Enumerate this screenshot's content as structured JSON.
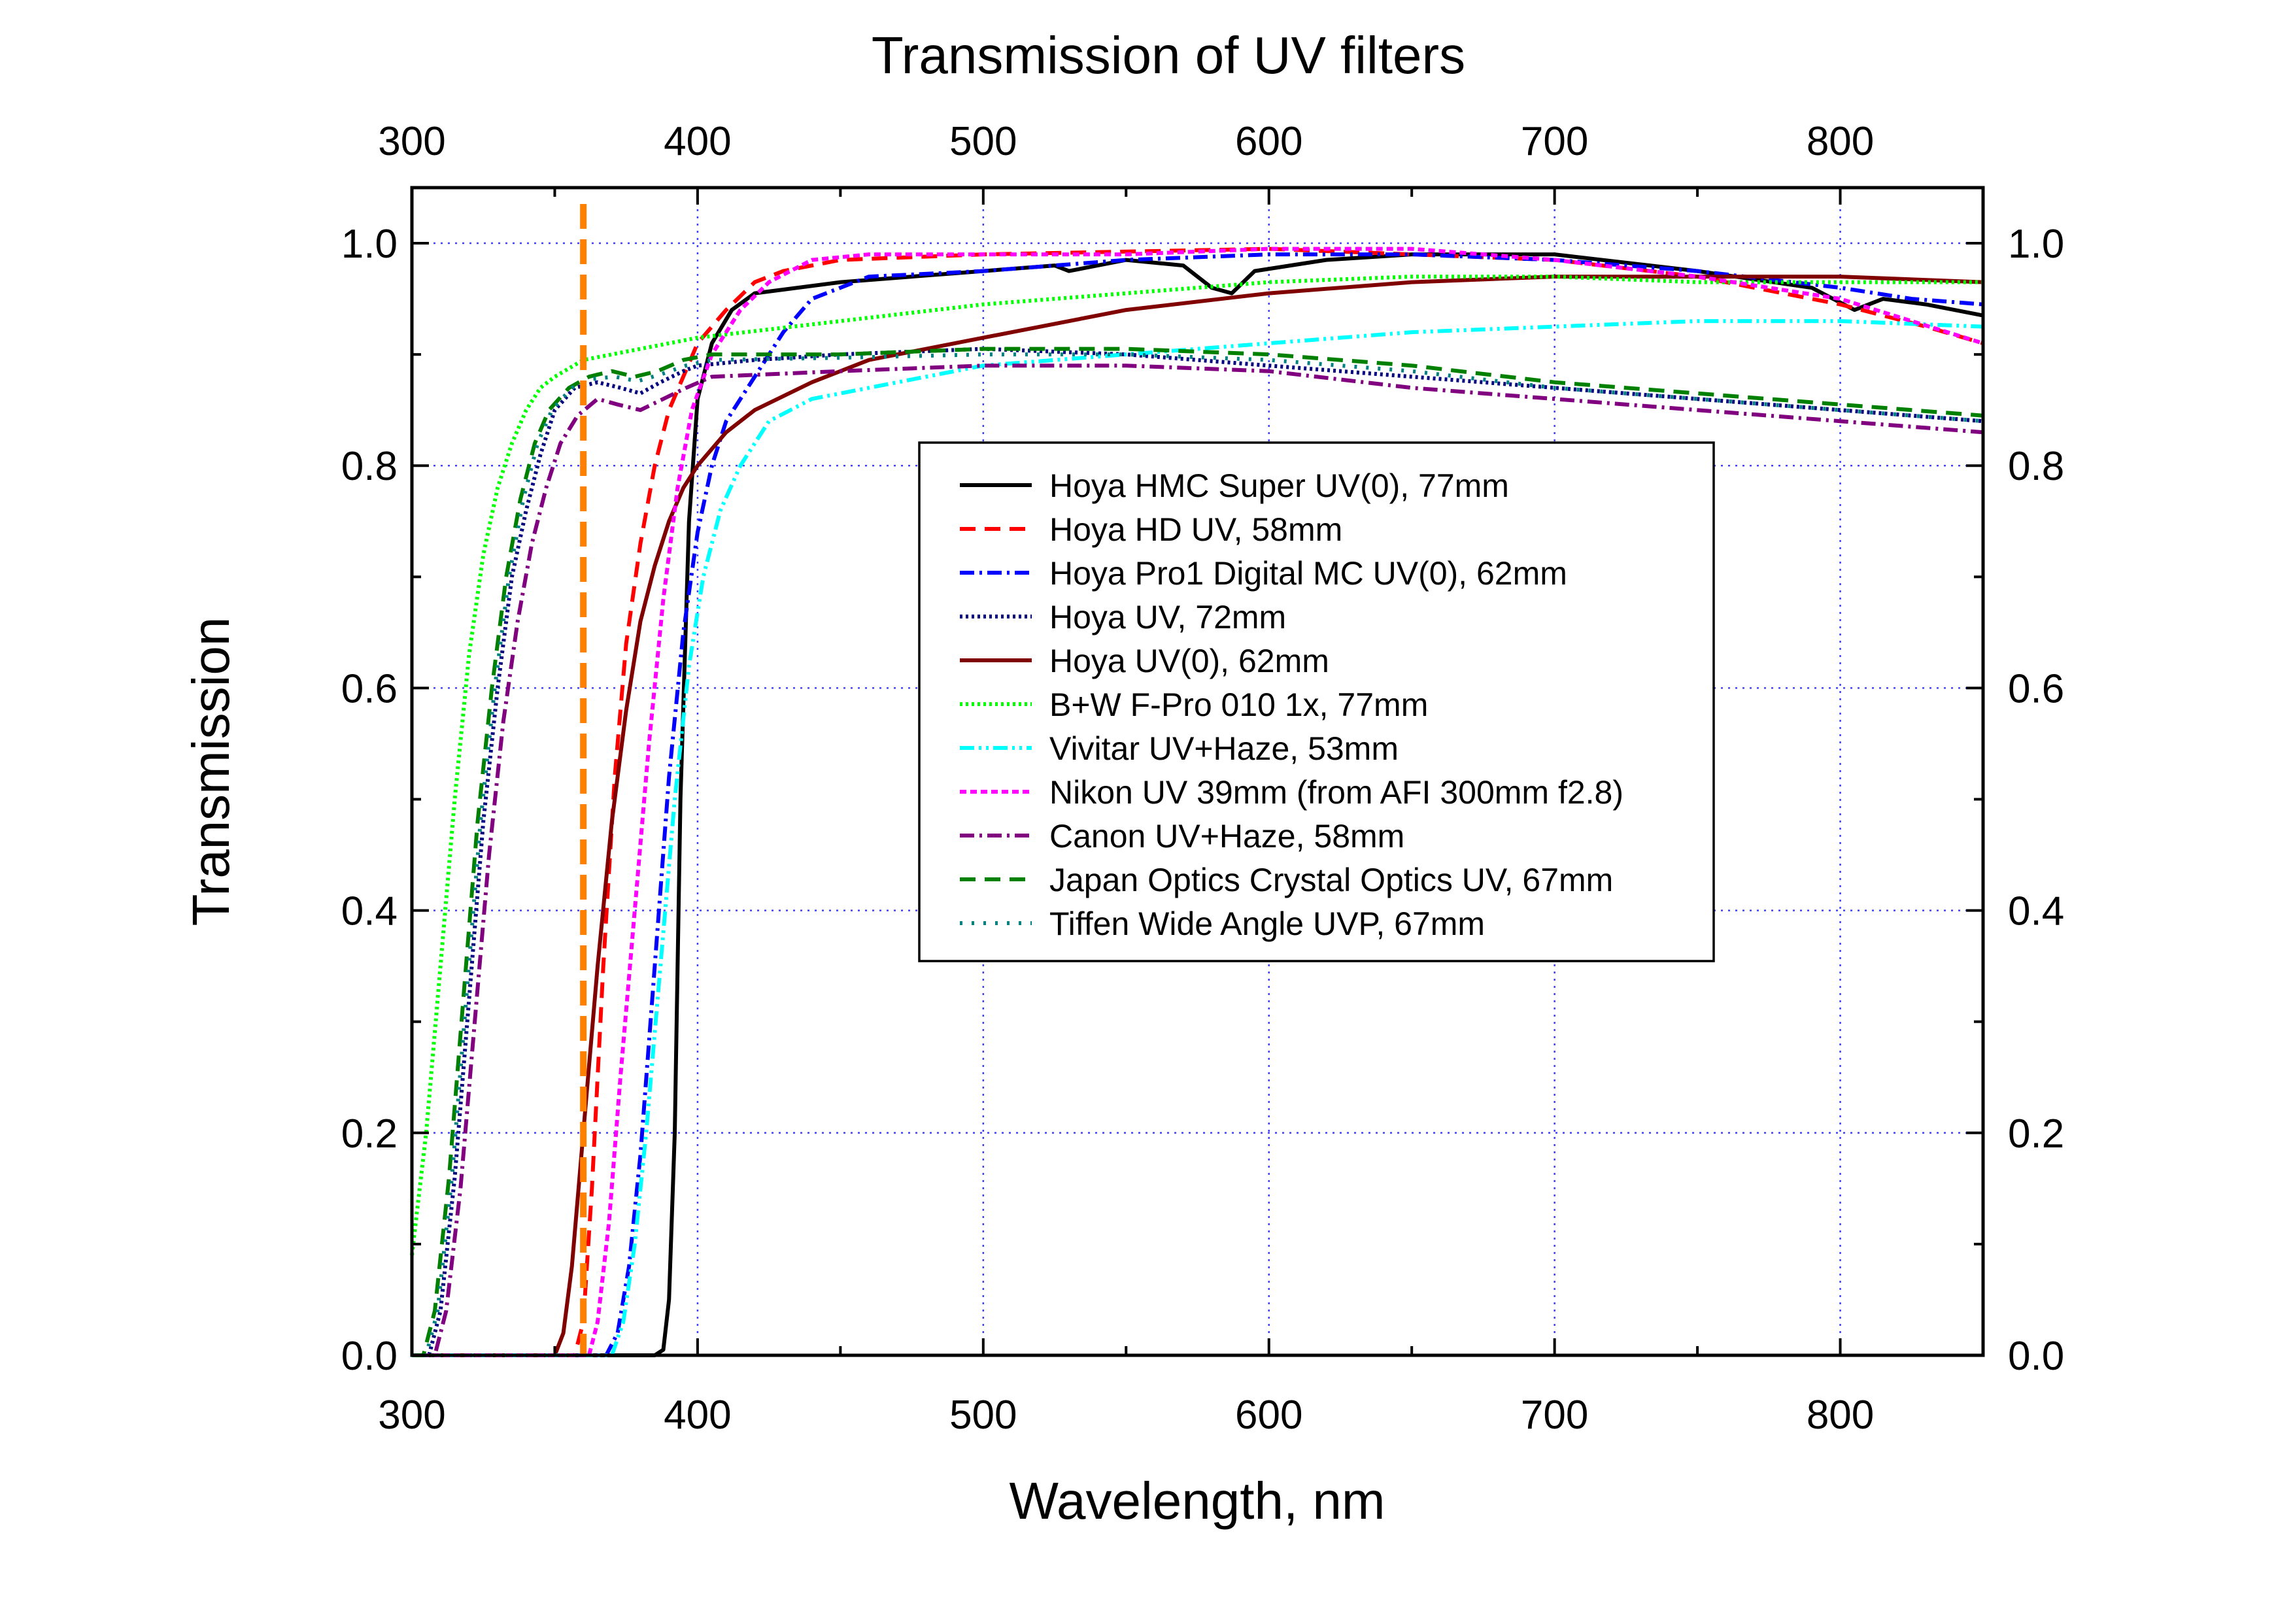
{
  "chart_data": {
    "type": "line",
    "title": "Transmission of UV filters",
    "xlabel": "Wavelength, nm",
    "ylabel": "Transmission",
    "xlim": [
      300,
      850
    ],
    "ylim": [
      0.0,
      1.05
    ],
    "x_ticks": [
      300,
      400,
      500,
      600,
      700,
      800
    ],
    "y_ticks": [
      "0.0",
      "0.2",
      "0.4",
      "0.6",
      "0.8",
      "1.0"
    ],
    "top_x_ticks": [
      300,
      400,
      500,
      600,
      700,
      800
    ],
    "right_y_ticks": [
      "0.0",
      "0.2",
      "0.4",
      "0.6",
      "0.8",
      "1.0"
    ],
    "grid": true,
    "legend_position": "center-right",
    "marker_line": {
      "x": 360,
      "color": "#ff7f00",
      "style": "dashed"
    },
    "series": [
      {
        "name": "Hoya HMC Super UV(0), 77mm",
        "color": "#000000",
        "dash": "solid",
        "points": [
          [
            300,
            0
          ],
          [
            385,
            0
          ],
          [
            388,
            0.005
          ],
          [
            390,
            0.05
          ],
          [
            392,
            0.2
          ],
          [
            394,
            0.5
          ],
          [
            397,
            0.75
          ],
          [
            400,
            0.86
          ],
          [
            405,
            0.91
          ],
          [
            412,
            0.94
          ],
          [
            420,
            0.955
          ],
          [
            450,
            0.965
          ],
          [
            500,
            0.975
          ],
          [
            525,
            0.98
          ],
          [
            530,
            0.975
          ],
          [
            550,
            0.985
          ],
          [
            570,
            0.98
          ],
          [
            580,
            0.96
          ],
          [
            587,
            0.955
          ],
          [
            595,
            0.975
          ],
          [
            620,
            0.985
          ],
          [
            650,
            0.99
          ],
          [
            700,
            0.99
          ],
          [
            750,
            0.975
          ],
          [
            790,
            0.96
          ],
          [
            805,
            0.94
          ],
          [
            815,
            0.95
          ],
          [
            830,
            0.945
          ],
          [
            850,
            0.935
          ]
        ]
      },
      {
        "name": "Hoya HD UV, 58mm",
        "color": "#ff0000",
        "dash": "long-dash",
        "points": [
          [
            300,
            0
          ],
          [
            357,
            0
          ],
          [
            360,
            0.03
          ],
          [
            363,
            0.15
          ],
          [
            367,
            0.35
          ],
          [
            371,
            0.52
          ],
          [
            375,
            0.64
          ],
          [
            380,
            0.73
          ],
          [
            385,
            0.8
          ],
          [
            390,
            0.85
          ],
          [
            400,
            0.91
          ],
          [
            410,
            0.94
          ],
          [
            420,
            0.965
          ],
          [
            430,
            0.975
          ],
          [
            450,
            0.985
          ],
          [
            500,
            0.99
          ],
          [
            600,
            0.995
          ],
          [
            650,
            0.99
          ],
          [
            700,
            0.985
          ],
          [
            750,
            0.97
          ],
          [
            800,
            0.945
          ],
          [
            830,
            0.925
          ],
          [
            850,
            0.91
          ]
        ]
      },
      {
        "name": "Hoya Pro1 Digital MC UV(0), 62mm",
        "color": "#0000ff",
        "dash": "dash-dot",
        "points": [
          [
            300,
            0
          ],
          [
            368,
            0
          ],
          [
            372,
            0.02
          ],
          [
            376,
            0.08
          ],
          [
            380,
            0.18
          ],
          [
            385,
            0.35
          ],
          [
            390,
            0.52
          ],
          [
            395,
            0.65
          ],
          [
            400,
            0.74
          ],
          [
            405,
            0.8
          ],
          [
            410,
            0.84
          ],
          [
            420,
            0.88
          ],
          [
            430,
            0.92
          ],
          [
            440,
            0.95
          ],
          [
            460,
            0.97
          ],
          [
            500,
            0.975
          ],
          [
            550,
            0.985
          ],
          [
            600,
            0.99
          ],
          [
            650,
            0.99
          ],
          [
            700,
            0.985
          ],
          [
            750,
            0.975
          ],
          [
            800,
            0.96
          ],
          [
            825,
            0.95
          ],
          [
            850,
            0.945
          ]
        ]
      },
      {
        "name": "Hoya UV, 72mm",
        "color": "#000080",
        "dash": "dotted",
        "points": [
          [
            300,
            0
          ],
          [
            306,
            0
          ],
          [
            310,
            0.04
          ],
          [
            315,
            0.16
          ],
          [
            320,
            0.32
          ],
          [
            325,
            0.48
          ],
          [
            330,
            0.6
          ],
          [
            335,
            0.7
          ],
          [
            340,
            0.76
          ],
          [
            345,
            0.81
          ],
          [
            350,
            0.85
          ],
          [
            357,
            0.87
          ],
          [
            365,
            0.875
          ],
          [
            373,
            0.87
          ],
          [
            380,
            0.865
          ],
          [
            387,
            0.875
          ],
          [
            395,
            0.885
          ],
          [
            400,
            0.89
          ],
          [
            420,
            0.895
          ],
          [
            450,
            0.9
          ],
          [
            500,
            0.905
          ],
          [
            550,
            0.9
          ],
          [
            600,
            0.89
          ],
          [
            650,
            0.88
          ],
          [
            700,
            0.87
          ],
          [
            750,
            0.86
          ],
          [
            800,
            0.85
          ],
          [
            850,
            0.84
          ]
        ]
      },
      {
        "name": "Hoya UV(0), 62mm",
        "color": "#800000",
        "dash": "solid",
        "points": [
          [
            300,
            0
          ],
          [
            350,
            0
          ],
          [
            353,
            0.02
          ],
          [
            356,
            0.08
          ],
          [
            360,
            0.2
          ],
          [
            365,
            0.35
          ],
          [
            370,
            0.48
          ],
          [
            375,
            0.58
          ],
          [
            380,
            0.66
          ],
          [
            385,
            0.71
          ],
          [
            390,
            0.75
          ],
          [
            395,
            0.78
          ],
          [
            400,
            0.8
          ],
          [
            410,
            0.83
          ],
          [
            420,
            0.85
          ],
          [
            440,
            0.875
          ],
          [
            460,
            0.895
          ],
          [
            500,
            0.915
          ],
          [
            550,
            0.94
          ],
          [
            600,
            0.955
          ],
          [
            650,
            0.965
          ],
          [
            700,
            0.97
          ],
          [
            750,
            0.97
          ],
          [
            800,
            0.97
          ],
          [
            850,
            0.965
          ]
        ]
      },
      {
        "name": "B+W F-Pro 010 1x, 77mm",
        "color": "#00ff00",
        "dash": "dotted",
        "points": [
          [
            300,
            0.09
          ],
          [
            305,
            0.2
          ],
          [
            310,
            0.35
          ],
          [
            315,
            0.5
          ],
          [
            320,
            0.63
          ],
          [
            325,
            0.72
          ],
          [
            330,
            0.78
          ],
          [
            335,
            0.82
          ],
          [
            340,
            0.85
          ],
          [
            345,
            0.87
          ],
          [
            350,
            0.88
          ],
          [
            360,
            0.895
          ],
          [
            380,
            0.905
          ],
          [
            400,
            0.915
          ],
          [
            450,
            0.93
          ],
          [
            500,
            0.945
          ],
          [
            550,
            0.955
          ],
          [
            600,
            0.965
          ],
          [
            650,
            0.97
          ],
          [
            700,
            0.97
          ],
          [
            750,
            0.965
          ],
          [
            800,
            0.965
          ],
          [
            850,
            0.965
          ]
        ]
      },
      {
        "name": "Vivitar UV+Haze, 53mm",
        "color": "#00ffff",
        "dash": "dash-dot-dot",
        "points": [
          [
            300,
            0
          ],
          [
            370,
            0
          ],
          [
            374,
            0.03
          ],
          [
            378,
            0.1
          ],
          [
            382,
            0.2
          ],
          [
            387,
            0.35
          ],
          [
            392,
            0.5
          ],
          [
            397,
            0.62
          ],
          [
            402,
            0.7
          ],
          [
            408,
            0.76
          ],
          [
            415,
            0.8
          ],
          [
            425,
            0.84
          ],
          [
            440,
            0.86
          ],
          [
            460,
            0.87
          ],
          [
            500,
            0.89
          ],
          [
            550,
            0.9
          ],
          [
            600,
            0.91
          ],
          [
            650,
            0.92
          ],
          [
            700,
            0.925
          ],
          [
            750,
            0.93
          ],
          [
            800,
            0.93
          ],
          [
            850,
            0.925
          ]
        ]
      },
      {
        "name": "Nikon UV 39mm (from AFI 300mm f2.8)",
        "color": "#ff00ff",
        "dash": "short-dash",
        "points": [
          [
            300,
            0
          ],
          [
            362,
            0
          ],
          [
            365,
            0.03
          ],
          [
            369,
            0.12
          ],
          [
            373,
            0.25
          ],
          [
            378,
            0.4
          ],
          [
            383,
            0.55
          ],
          [
            388,
            0.68
          ],
          [
            393,
            0.78
          ],
          [
            398,
            0.85
          ],
          [
            405,
            0.9
          ],
          [
            415,
            0.94
          ],
          [
            425,
            0.965
          ],
          [
            440,
            0.985
          ],
          [
            460,
            0.99
          ],
          [
            500,
            0.99
          ],
          [
            550,
            0.99
          ],
          [
            600,
            0.995
          ],
          [
            650,
            0.995
          ],
          [
            700,
            0.985
          ],
          [
            750,
            0.97
          ],
          [
            800,
            0.95
          ],
          [
            825,
            0.93
          ],
          [
            850,
            0.91
          ]
        ]
      },
      {
        "name": "Canon UV+Haze, 58mm",
        "color": "#800080",
        "dash": "dash-dot",
        "points": [
          [
            300,
            0
          ],
          [
            308,
            0
          ],
          [
            312,
            0.04
          ],
          [
            317,
            0.15
          ],
          [
            322,
            0.3
          ],
          [
            327,
            0.45
          ],
          [
            332,
            0.57
          ],
          [
            337,
            0.66
          ],
          [
            342,
            0.73
          ],
          [
            347,
            0.78
          ],
          [
            352,
            0.82
          ],
          [
            358,
            0.845
          ],
          [
            365,
            0.86
          ],
          [
            372,
            0.855
          ],
          [
            380,
            0.85
          ],
          [
            388,
            0.86
          ],
          [
            396,
            0.87
          ],
          [
            405,
            0.88
          ],
          [
            450,
            0.885
          ],
          [
            500,
            0.89
          ],
          [
            550,
            0.89
          ],
          [
            600,
            0.885
          ],
          [
            650,
            0.87
          ],
          [
            700,
            0.86
          ],
          [
            750,
            0.85
          ],
          [
            800,
            0.84
          ],
          [
            850,
            0.83
          ]
        ]
      },
      {
        "name": "Japan Optics Crystal Optics UV, 67mm",
        "color": "#008000",
        "dash": "long-dash",
        "points": [
          [
            300,
            0
          ],
          [
            304,
            0
          ],
          [
            308,
            0.04
          ],
          [
            313,
            0.16
          ],
          [
            318,
            0.32
          ],
          [
            323,
            0.48
          ],
          [
            328,
            0.6
          ],
          [
            333,
            0.7
          ],
          [
            338,
            0.77
          ],
          [
            343,
            0.82
          ],
          [
            348,
            0.85
          ],
          [
            355,
            0.87
          ],
          [
            362,
            0.88
          ],
          [
            370,
            0.885
          ],
          [
            378,
            0.88
          ],
          [
            386,
            0.885
          ],
          [
            395,
            0.895
          ],
          [
            405,
            0.9
          ],
          [
            450,
            0.9
          ],
          [
            500,
            0.905
          ],
          [
            550,
            0.905
          ],
          [
            600,
            0.9
          ],
          [
            650,
            0.89
          ],
          [
            700,
            0.875
          ],
          [
            750,
            0.865
          ],
          [
            800,
            0.855
          ],
          [
            850,
            0.845
          ]
        ]
      },
      {
        "name": "Tiffen Wide Angle UVP, 67mm",
        "color": "#008080",
        "dash": "sparse-dot",
        "points": [
          [
            300,
            0
          ],
          [
            305,
            0
          ],
          [
            309,
            0.04
          ],
          [
            314,
            0.16
          ],
          [
            319,
            0.32
          ],
          [
            324,
            0.48
          ],
          [
            329,
            0.6
          ],
          [
            334,
            0.7
          ],
          [
            339,
            0.77
          ],
          [
            344,
            0.82
          ],
          [
            349,
            0.85
          ],
          [
            356,
            0.87
          ],
          [
            363,
            0.878
          ],
          [
            371,
            0.88
          ],
          [
            379,
            0.876
          ],
          [
            387,
            0.882
          ],
          [
            396,
            0.89
          ],
          [
            405,
            0.895
          ],
          [
            450,
            0.897
          ],
          [
            500,
            0.9
          ],
          [
            550,
            0.9
          ],
          [
            600,
            0.895
          ],
          [
            650,
            0.885
          ],
          [
            700,
            0.87
          ],
          [
            750,
            0.86
          ],
          [
            800,
            0.85
          ],
          [
            850,
            0.84
          ]
        ]
      }
    ]
  }
}
